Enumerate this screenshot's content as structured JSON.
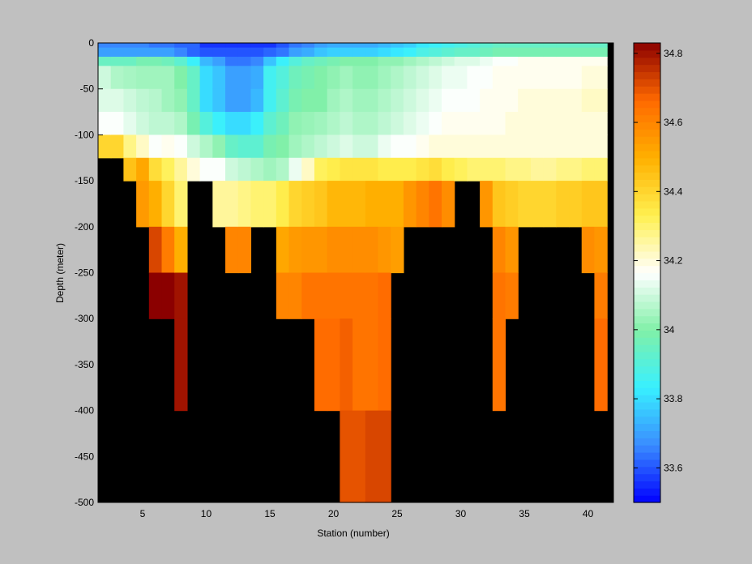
{
  "chart_data": {
    "type": "heatmap",
    "title": "",
    "xlabel": "Station (number)",
    "ylabel": "Depth (meter)",
    "xlim": [
      1.5,
      42
    ],
    "ylim": [
      -500,
      0
    ],
    "x_ticks": [
      5,
      10,
      15,
      20,
      25,
      30,
      35,
      40
    ],
    "y_ticks": [
      0,
      -50,
      -100,
      -150,
      -200,
      -250,
      -300,
      -350,
      -400,
      -450,
      -500
    ],
    "colorbar": {
      "range": [
        33.5,
        34.83
      ],
      "ticks": [
        33.6,
        33.8,
        34,
        34.2,
        34.4,
        34.6,
        34.8
      ],
      "colormap": "jet-like with white center",
      "colors": [
        "#0000ff",
        "#3a8cff",
        "#38f0ff",
        "#80f0a8",
        "#ffffff",
        "#fff050",
        "#ffb000",
        "#ff6a00",
        "#8b0000"
      ]
    },
    "background_color": "#000000",
    "stations": [
      2,
      3,
      4,
      5,
      6,
      7,
      8,
      9,
      10,
      11,
      12,
      13,
      14,
      15,
      16,
      17,
      18,
      19,
      20,
      21,
      22,
      23,
      24,
      25,
      26,
      27,
      28,
      29,
      30,
      31,
      32,
      33,
      34,
      35,
      36,
      37,
      38,
      39,
      40,
      41
    ],
    "depth_bins": [
      0,
      -5,
      -15,
      -25,
      -50,
      -75,
      -100,
      -125,
      -150,
      -200,
      -250,
      -300,
      -400,
      -500
    ],
    "salinity_columns": [
      [
        33.66,
        33.7,
        33.95,
        34.1,
        34.12,
        34.16,
        34.4,
        null,
        null,
        null,
        null,
        null,
        null
      ],
      [
        33.66,
        33.7,
        33.95,
        34.06,
        34.12,
        34.16,
        34.4,
        null,
        null,
        null,
        null,
        null,
        null
      ],
      [
        33.66,
        33.7,
        33.95,
        34.05,
        34.1,
        34.13,
        34.28,
        34.45,
        null,
        null,
        null,
        null,
        null
      ],
      [
        33.66,
        33.7,
        33.98,
        34.04,
        34.08,
        34.1,
        34.22,
        34.52,
        34.55,
        null,
        null,
        null,
        null
      ],
      [
        33.64,
        33.7,
        33.98,
        34.04,
        34.07,
        34.08,
        34.16,
        34.38,
        34.5,
        34.72,
        34.84,
        null,
        null
      ],
      [
        33.64,
        33.7,
        33.96,
        34.04,
        34.04,
        34.08,
        34.18,
        34.32,
        34.4,
        34.62,
        34.84,
        null,
        null
      ],
      [
        33.62,
        33.66,
        33.92,
        34.0,
        34.02,
        34.06,
        34.16,
        34.26,
        34.3,
        34.5,
        34.8,
        34.8,
        null
      ],
      [
        33.62,
        33.62,
        33.84,
        33.94,
        33.94,
        33.98,
        34.1,
        34.2,
        null,
        null,
        null,
        null,
        null
      ],
      [
        33.56,
        33.6,
        33.74,
        33.8,
        33.8,
        33.9,
        34.06,
        34.16,
        null,
        null,
        null,
        null,
        null
      ],
      [
        33.56,
        33.6,
        33.7,
        33.76,
        33.76,
        33.84,
        34.02,
        34.16,
        34.26,
        null,
        null,
        null,
        null
      ],
      [
        33.56,
        33.6,
        33.64,
        33.7,
        33.7,
        33.8,
        33.94,
        34.1,
        34.26,
        34.6,
        null,
        null,
        null
      ],
      [
        33.56,
        33.6,
        33.64,
        33.7,
        33.7,
        33.8,
        33.92,
        34.08,
        34.28,
        34.6,
        null,
        null,
        null
      ],
      [
        33.56,
        33.6,
        33.66,
        33.72,
        33.74,
        33.84,
        33.92,
        34.06,
        34.3,
        null,
        null,
        null,
        null
      ],
      [
        33.56,
        33.62,
        33.76,
        33.86,
        33.86,
        33.92,
        33.98,
        34.04,
        34.3,
        null,
        null,
        null,
        null
      ],
      [
        33.6,
        33.64,
        33.84,
        33.9,
        33.92,
        33.96,
        34.0,
        34.06,
        34.34,
        34.52,
        34.6,
        null,
        null
      ],
      [
        33.64,
        33.7,
        33.9,
        33.96,
        33.98,
        34.02,
        34.04,
        34.14,
        34.4,
        34.55,
        34.6,
        null,
        null
      ],
      [
        33.66,
        33.72,
        33.94,
        33.98,
        34.0,
        34.03,
        34.06,
        34.22,
        34.42,
        34.56,
        34.64,
        null,
        null
      ],
      [
        33.7,
        33.76,
        33.96,
        34.0,
        34.0,
        34.04,
        34.08,
        34.32,
        34.44,
        34.56,
        34.64,
        34.66,
        null
      ],
      [
        33.72,
        33.78,
        33.98,
        34.02,
        34.04,
        34.06,
        34.1,
        34.34,
        34.48,
        34.58,
        34.64,
        34.66,
        null
      ],
      [
        33.72,
        33.78,
        34.0,
        34.04,
        34.06,
        34.08,
        34.12,
        34.36,
        34.48,
        34.58,
        34.64,
        34.68,
        34.7
      ],
      [
        33.72,
        33.78,
        34.0,
        34.02,
        34.04,
        34.06,
        34.1,
        34.36,
        34.48,
        34.58,
        34.64,
        34.64,
        34.7
      ],
      [
        33.72,
        33.78,
        34.0,
        34.02,
        34.04,
        34.06,
        34.1,
        34.36,
        34.5,
        34.58,
        34.64,
        34.64,
        34.72
      ],
      [
        33.74,
        33.8,
        34.02,
        34.04,
        34.06,
        34.08,
        34.14,
        34.34,
        34.5,
        34.56,
        34.66,
        34.66,
        34.72
      ],
      [
        33.76,
        33.82,
        34.02,
        34.06,
        34.08,
        34.1,
        34.16,
        34.34,
        34.5,
        34.54,
        null,
        null,
        null
      ],
      [
        33.78,
        33.84,
        34.04,
        34.08,
        34.1,
        34.12,
        34.16,
        34.34,
        34.56,
        null,
        null,
        null,
        null
      ],
      [
        33.82,
        33.88,
        34.06,
        34.1,
        34.12,
        34.14,
        34.18,
        34.36,
        34.6,
        null,
        null,
        null,
        null
      ],
      [
        33.84,
        33.9,
        34.08,
        34.12,
        34.14,
        34.16,
        34.2,
        34.38,
        34.64,
        null,
        null,
        null,
        null
      ],
      [
        33.86,
        33.92,
        34.1,
        34.14,
        34.16,
        34.18,
        34.2,
        34.34,
        34.58,
        null,
        null,
        null,
        null
      ],
      [
        33.88,
        33.94,
        34.12,
        34.14,
        34.16,
        34.18,
        34.2,
        34.32,
        null,
        null,
        null,
        null,
        null
      ],
      [
        33.9,
        33.94,
        34.12,
        34.16,
        34.16,
        34.18,
        34.2,
        34.3,
        null,
        null,
        null,
        null,
        null
      ],
      [
        33.92,
        33.96,
        34.14,
        34.16,
        34.18,
        34.18,
        34.2,
        34.3,
        34.56,
        null,
        null,
        null,
        null
      ],
      [
        33.94,
        33.98,
        34.16,
        34.18,
        34.18,
        34.18,
        34.2,
        34.3,
        34.44,
        34.6,
        34.64,
        34.64,
        null
      ],
      [
        33.94,
        33.98,
        34.16,
        34.18,
        34.18,
        34.2,
        34.2,
        34.28,
        34.42,
        34.56,
        34.62,
        null,
        null
      ],
      [
        33.94,
        33.98,
        34.18,
        34.18,
        34.2,
        34.2,
        34.2,
        34.28,
        34.4,
        null,
        null,
        null,
        null
      ],
      [
        33.94,
        33.98,
        34.18,
        34.18,
        34.2,
        34.2,
        34.2,
        34.26,
        34.4,
        null,
        null,
        null,
        null
      ],
      [
        33.94,
        33.98,
        34.18,
        34.18,
        34.2,
        34.2,
        34.2,
        34.26,
        34.4,
        null,
        null,
        null,
        null
      ],
      [
        33.94,
        33.98,
        34.18,
        34.18,
        34.2,
        34.2,
        34.2,
        34.28,
        34.42,
        null,
        null,
        null,
        null
      ],
      [
        33.94,
        33.98,
        34.18,
        34.18,
        34.2,
        34.2,
        34.2,
        34.28,
        34.42,
        null,
        null,
        null,
        null
      ],
      [
        33.94,
        33.98,
        34.18,
        34.2,
        34.22,
        34.2,
        34.2,
        34.3,
        34.44,
        34.58,
        null,
        null,
        null
      ],
      [
        33.94,
        33.98,
        34.18,
        34.2,
        34.22,
        34.2,
        34.2,
        34.3,
        34.44,
        34.56,
        34.62,
        34.66,
        null
      ]
    ]
  }
}
